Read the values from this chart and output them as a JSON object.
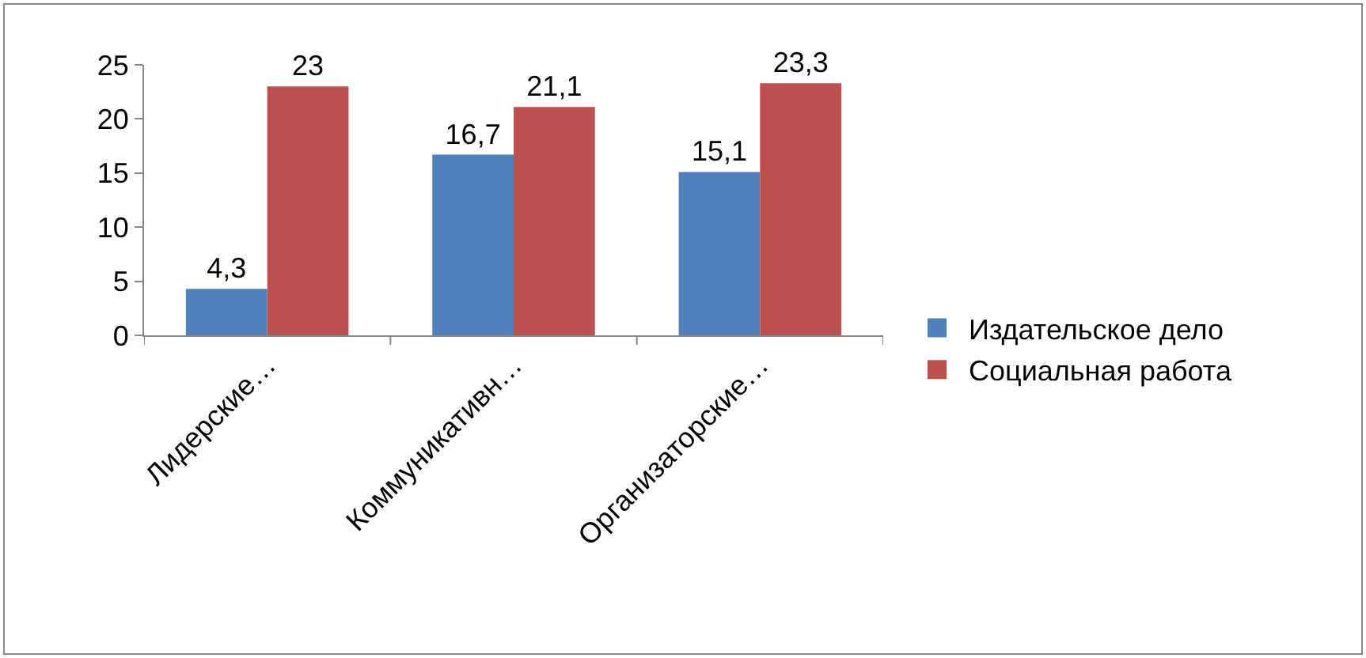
{
  "chart_data": {
    "type": "bar",
    "categories": [
      "Лидерские…",
      "Коммуникативн…",
      "Организаторские…"
    ],
    "series": [
      {
        "name": "Издательское дело",
        "color": "#4f81bd",
        "values": [
          4.3,
          16.7,
          15.1
        ],
        "value_labels": [
          "4,3",
          "16,7",
          "15,1"
        ]
      },
      {
        "name": "Социальная работа",
        "color": "#c0504d",
        "values": [
          23,
          21.1,
          23.3
        ],
        "value_labels": [
          "23",
          "21,1",
          "23,3"
        ]
      }
    ],
    "ylim": [
      0,
      25
    ],
    "yticks": [
      0,
      5,
      10,
      15,
      20,
      25
    ],
    "grid": false,
    "legend": "right"
  }
}
